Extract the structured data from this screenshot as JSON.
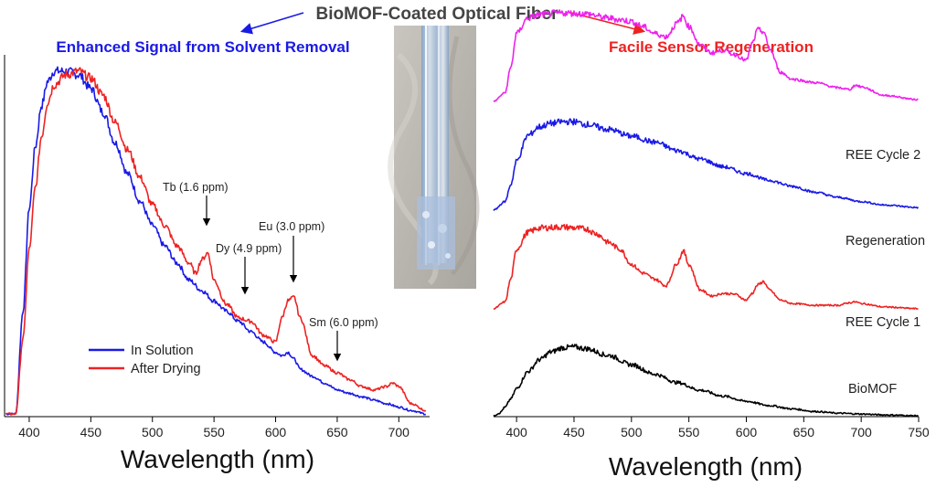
{
  "figure": {
    "main_title": "BioMOF-Coated Optical Fiber",
    "left_title": "Enhanced Signal from Solvent Removal",
    "right_title": "Facile Sensor Regeneration",
    "colors": {
      "blue": "#1a1ae6",
      "red": "#ee2222",
      "magenta": "#ee22ee",
      "black": "#000000"
    },
    "photo_icon": "optical-fiber-photo"
  },
  "chart_data": [
    {
      "type": "line",
      "title": "Enhanced Signal from Solvent Removal",
      "xlabel": "Wavelength (nm)",
      "ylabel": "",
      "xlim": [
        380,
        725
      ],
      "xticks": [
        400,
        450,
        500,
        550,
        600,
        650,
        700
      ],
      "grid": false,
      "legend": {
        "position": "lower-left",
        "entries": [
          "In Solution",
          "After Drying"
        ]
      },
      "series": [
        {
          "name": "In Solution",
          "color": "#1a1ae6",
          "x": [
            381,
            389,
            395,
            400,
            405,
            410,
            415,
            420,
            430,
            440,
            450,
            460,
            470,
            480,
            490,
            500,
            510,
            520,
            530,
            540,
            550,
            560,
            570,
            580,
            590,
            600,
            605,
            610,
            615,
            620,
            630,
            640,
            650,
            660,
            670,
            680,
            690,
            700,
            710,
            722
          ],
          "y": [
            0.0,
            0.0,
            0.3,
            0.6,
            0.78,
            0.9,
            0.97,
            1.0,
            1.0,
            0.99,
            0.95,
            0.88,
            0.79,
            0.7,
            0.62,
            0.55,
            0.49,
            0.44,
            0.39,
            0.36,
            0.33,
            0.3,
            0.27,
            0.24,
            0.21,
            0.18,
            0.17,
            0.18,
            0.16,
            0.13,
            0.11,
            0.09,
            0.07,
            0.06,
            0.05,
            0.04,
            0.03,
            0.02,
            0.01,
            0.0
          ]
        },
        {
          "name": "After Drying",
          "color": "#ee2222",
          "x": [
            381,
            389,
            395,
            400,
            405,
            410,
            415,
            420,
            430,
            440,
            450,
            460,
            470,
            480,
            490,
            500,
            510,
            520,
            530,
            535,
            540,
            545,
            550,
            560,
            570,
            580,
            590,
            600,
            605,
            610,
            615,
            620,
            630,
            640,
            650,
            660,
            670,
            680,
            690,
            695,
            700,
            710,
            722
          ],
          "y": [
            0.0,
            0.0,
            0.22,
            0.48,
            0.66,
            0.81,
            0.91,
            0.96,
            0.99,
            1.0,
            0.98,
            0.93,
            0.85,
            0.77,
            0.69,
            0.61,
            0.55,
            0.49,
            0.44,
            0.41,
            0.45,
            0.47,
            0.39,
            0.32,
            0.28,
            0.27,
            0.23,
            0.21,
            0.28,
            0.33,
            0.34,
            0.28,
            0.17,
            0.14,
            0.12,
            0.1,
            0.08,
            0.07,
            0.08,
            0.09,
            0.08,
            0.03,
            0.01
          ]
        }
      ],
      "annotations": [
        {
          "text": "Tb (1.6 ppm)",
          "x": 545
        },
        {
          "text": "Dy (4.9 ppm)",
          "x": 576
        },
        {
          "text": "Eu (3.0 ppm)",
          "x": 615
        },
        {
          "text": "Sm (6.0 ppm)",
          "x": 650
        }
      ]
    },
    {
      "type": "line",
      "title": "Facile Sensor Regeneration",
      "xlabel": "Wavelength (nm)",
      "ylabel": "",
      "xlim": [
        380,
        750
      ],
      "xticks": [
        400,
        450,
        500,
        550,
        600,
        650,
        700,
        750
      ],
      "grid": false,
      "legend": {
        "position": "right",
        "entries": [
          "REE Cycle 2",
          "Regeneration",
          "REE Cycle 1",
          "BioMOF"
        ]
      },
      "series": [
        {
          "name": "BioMOF",
          "color": "#000000",
          "offset": 0,
          "x": [
            380,
            385,
            390,
            395,
            400,
            410,
            420,
            430,
            440,
            450,
            460,
            480,
            500,
            520,
            540,
            560,
            580,
            600,
            620,
            640,
            660,
            680,
            700,
            720,
            750
          ],
          "y": [
            0.0,
            0.03,
            0.1,
            0.2,
            0.32,
            0.52,
            0.66,
            0.75,
            0.8,
            0.81,
            0.79,
            0.71,
            0.6,
            0.49,
            0.39,
            0.3,
            0.23,
            0.17,
            0.12,
            0.08,
            0.05,
            0.03,
            0.02,
            0.01,
            0.0
          ]
        },
        {
          "name": "REE Cycle 1",
          "color": "#ee2222",
          "offset": 1.26,
          "x": [
            380,
            390,
            395,
            400,
            410,
            420,
            440,
            460,
            470,
            480,
            490,
            500,
            510,
            520,
            530,
            540,
            545,
            550,
            560,
            570,
            580,
            590,
            600,
            605,
            610,
            615,
            620,
            630,
            640,
            660,
            680,
            690,
            695,
            700,
            720,
            750
          ],
          "y": [
            0.0,
            0.08,
            0.35,
            0.7,
            0.9,
            0.95,
            0.96,
            0.94,
            0.88,
            0.78,
            0.7,
            0.52,
            0.42,
            0.35,
            0.27,
            0.54,
            0.68,
            0.52,
            0.22,
            0.15,
            0.18,
            0.17,
            0.1,
            0.18,
            0.28,
            0.32,
            0.22,
            0.1,
            0.06,
            0.04,
            0.04,
            0.07,
            0.08,
            0.06,
            0.02,
            0.0
          ]
        },
        {
          "name": "Regeneration",
          "color": "#1a1ae6",
          "offset": 2.42,
          "x": [
            380,
            390,
            395,
            400,
            410,
            420,
            430,
            440,
            450,
            460,
            480,
            500,
            520,
            540,
            560,
            580,
            600,
            620,
            640,
            660,
            680,
            700,
            720,
            750
          ],
          "y": [
            0.0,
            0.1,
            0.3,
            0.58,
            0.88,
            0.98,
            1.02,
            1.04,
            1.04,
            1.01,
            0.95,
            0.87,
            0.8,
            0.7,
            0.6,
            0.51,
            0.43,
            0.35,
            0.28,
            0.21,
            0.15,
            0.1,
            0.06,
            0.03
          ]
        },
        {
          "name": "REE Cycle 2",
          "color": "#ee22ee",
          "offset": 3.7,
          "x": [
            380,
            390,
            395,
            400,
            410,
            420,
            440,
            460,
            480,
            490,
            500,
            510,
            520,
            530,
            540,
            545,
            550,
            560,
            570,
            580,
            590,
            600,
            605,
            610,
            615,
            620,
            630,
            640,
            660,
            680,
            690,
            695,
            700,
            720,
            750
          ],
          "y": [
            0.0,
            0.1,
            0.4,
            0.8,
            0.98,
            1.02,
            1.04,
            1.03,
            0.98,
            0.96,
            0.94,
            0.88,
            0.8,
            0.76,
            0.92,
            1.0,
            0.88,
            0.66,
            0.57,
            0.6,
            0.55,
            0.48,
            0.68,
            0.84,
            0.82,
            0.62,
            0.34,
            0.26,
            0.22,
            0.16,
            0.14,
            0.19,
            0.17,
            0.07,
            0.02
          ]
        }
      ]
    }
  ]
}
